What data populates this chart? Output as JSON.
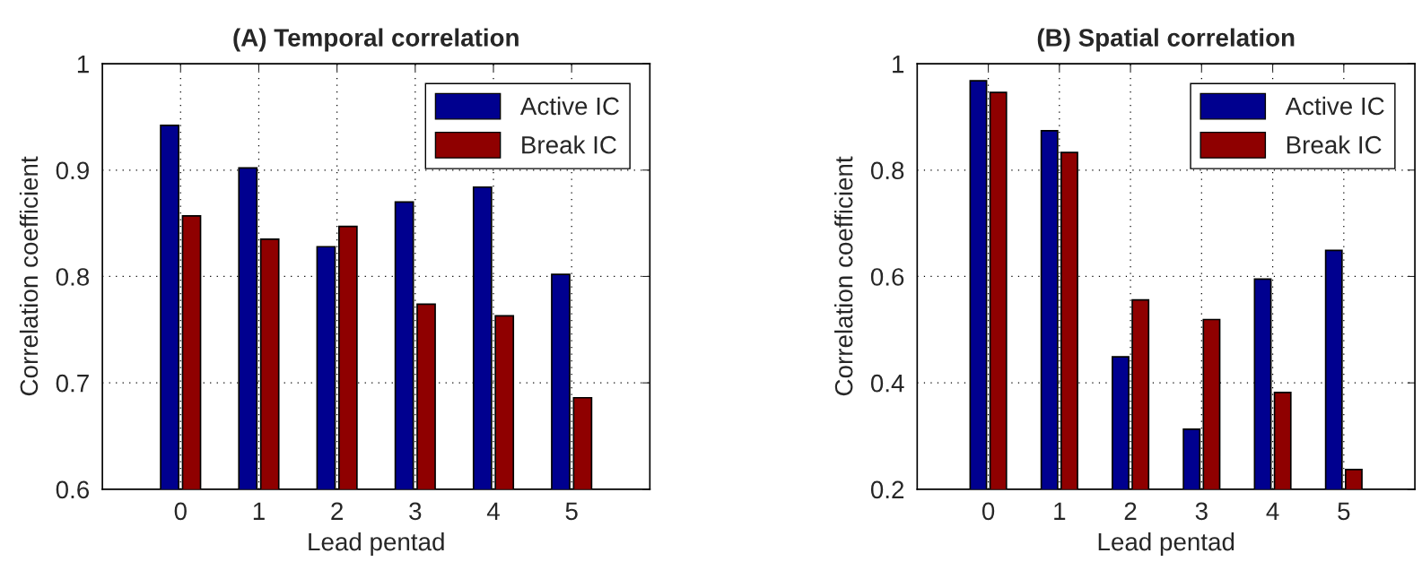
{
  "chart_data": [
    {
      "type": "bar",
      "title": "(A) Temporal correlation",
      "xlabel": "Lead pentad",
      "ylabel": "Correlation coefficient",
      "x": [
        0,
        1,
        2,
        3,
        4,
        5
      ],
      "xlim": [
        -1,
        6
      ],
      "xticks": [
        0,
        1,
        2,
        3,
        4,
        5
      ],
      "ylim": [
        0.6,
        1
      ],
      "yticks": [
        0.6,
        0.7,
        0.8,
        0.9,
        1
      ],
      "series": [
        {
          "name": "Active IC",
          "color": "#00008f",
          "values": [
            0.942,
            0.902,
            0.828,
            0.87,
            0.884,
            0.802
          ]
        },
        {
          "name": "Break IC",
          "color": "#8f0000",
          "values": [
            0.857,
            0.835,
            0.847,
            0.774,
            0.763,
            0.686
          ]
        }
      ],
      "grid": true,
      "legend": "top right"
    },
    {
      "type": "bar",
      "title": "(B) Spatial correlation",
      "xlabel": "Lead pentad",
      "ylabel": "Correlation coefficient",
      "x": [
        0,
        1,
        2,
        3,
        4,
        5
      ],
      "xlim": [
        -1,
        6
      ],
      "xticks": [
        0,
        1,
        2,
        3,
        4,
        5
      ],
      "ylim": [
        0.2,
        1
      ],
      "yticks": [
        0.2,
        0.4,
        0.6,
        0.8,
        1
      ],
      "series": [
        {
          "name": "Active IC",
          "color": "#00008f",
          "values": [
            0.968,
            0.874,
            0.449,
            0.313,
            0.595,
            0.649
          ]
        },
        {
          "name": "Break IC",
          "color": "#8f0000",
          "values": [
            0.946,
            0.833,
            0.556,
            0.519,
            0.382,
            0.237
          ]
        }
      ],
      "grid": true,
      "legend": "top right"
    }
  ]
}
